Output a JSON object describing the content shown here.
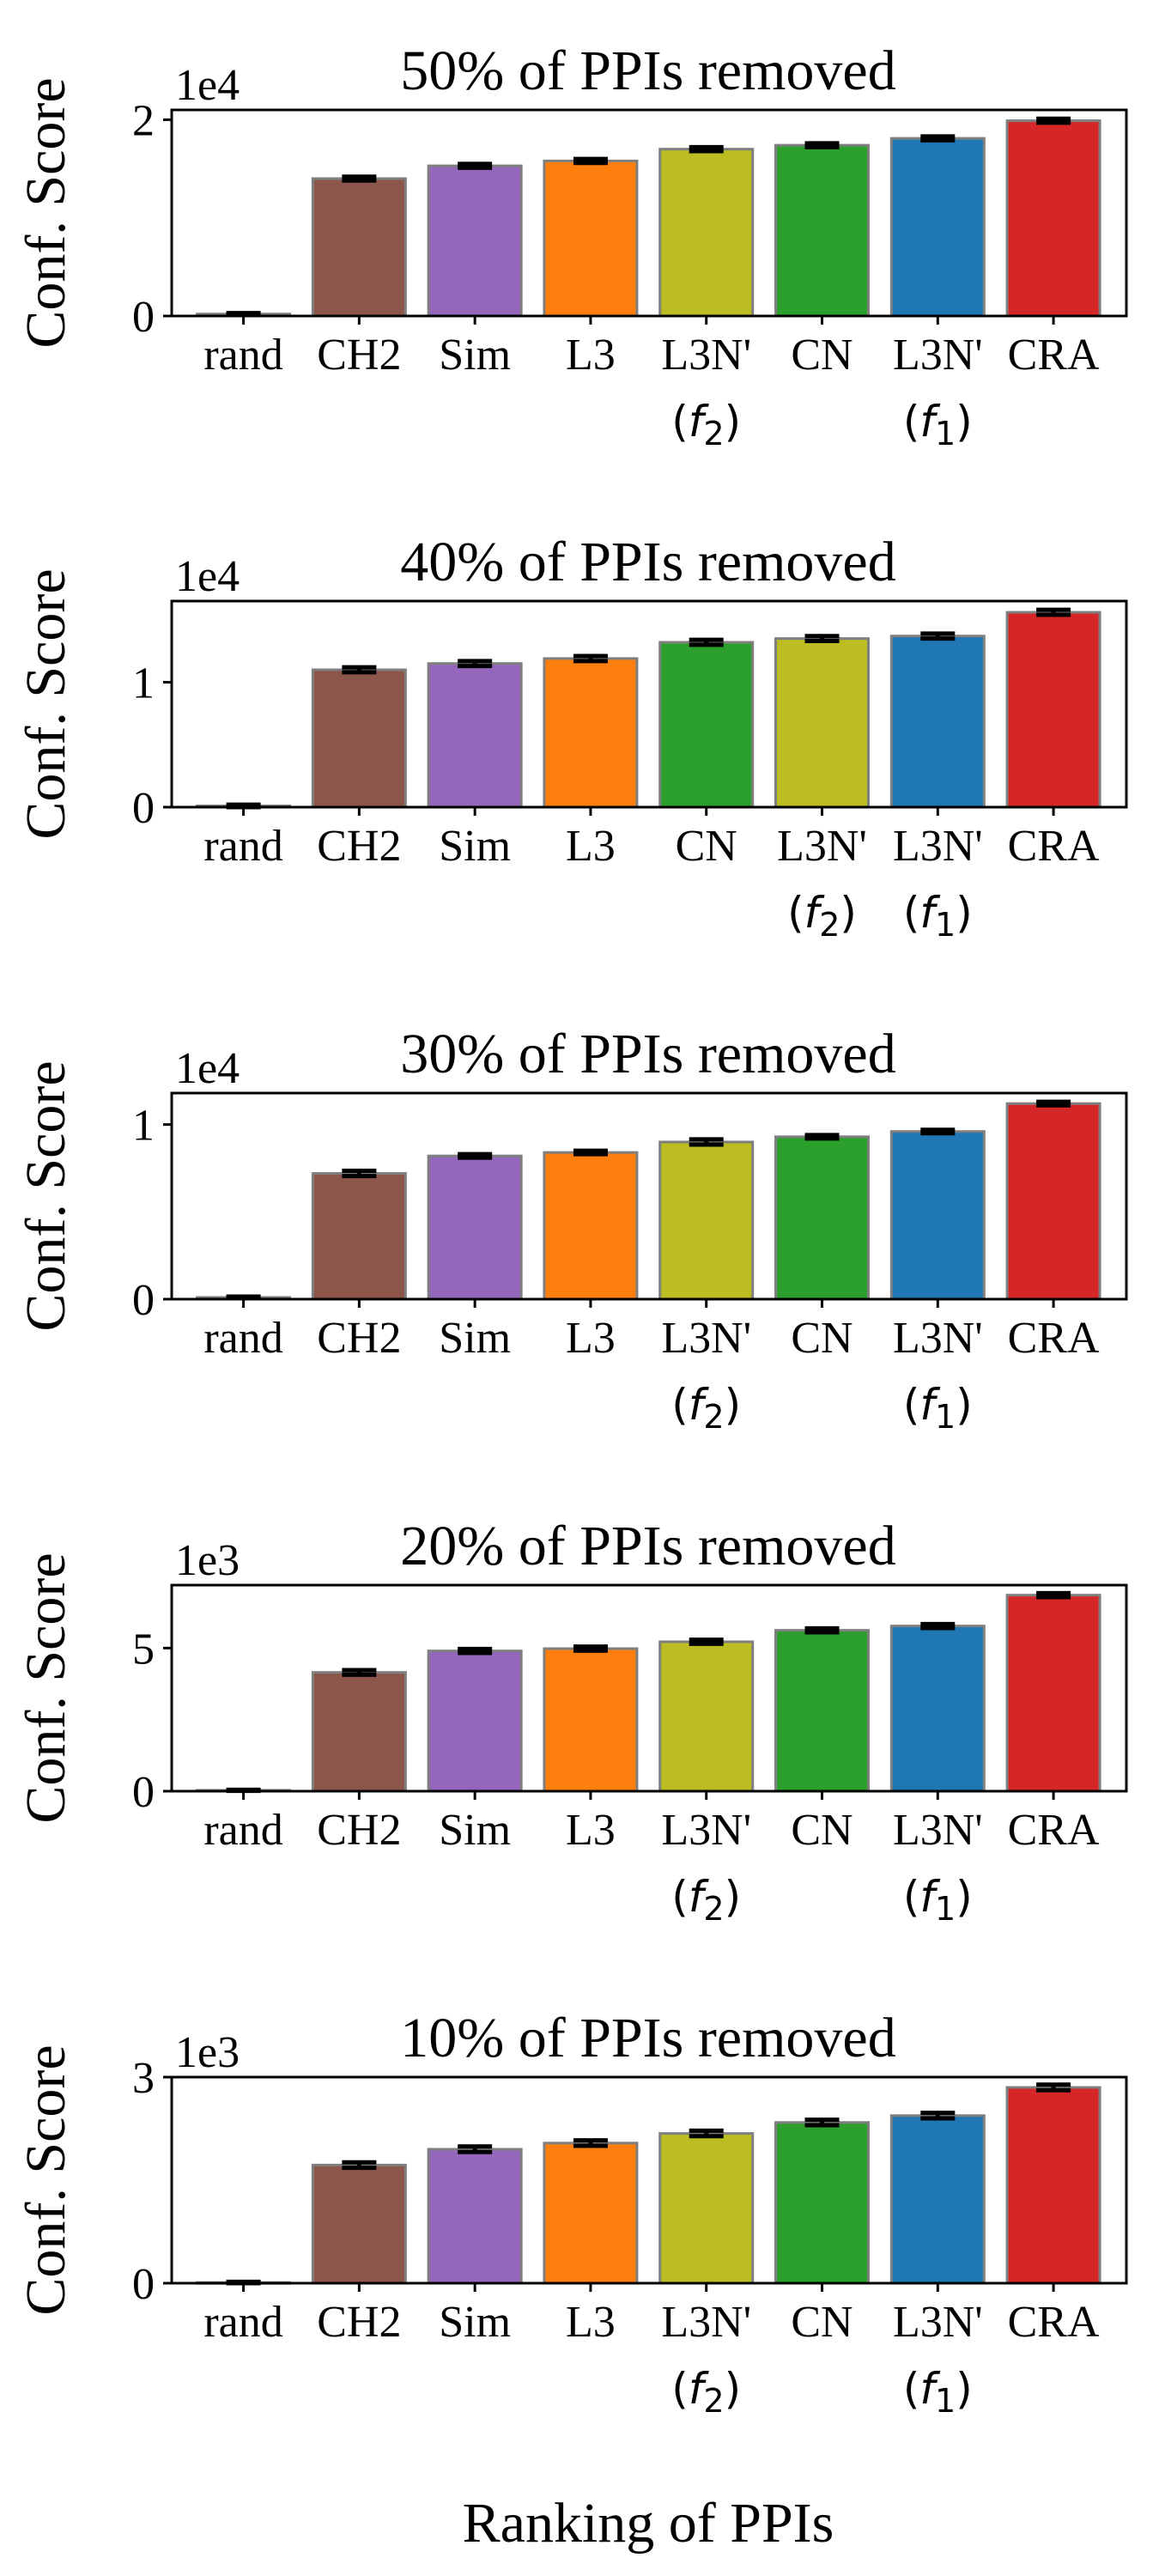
{
  "figure": {
    "xlabel": "Ranking of PPIs",
    "ylabel": "Conf. Score"
  },
  "colors": {
    "rand": "#7f7f7f",
    "CH2": "#8c564b",
    "Sim": "#9467bd",
    "L3": "#ff7f0e",
    "f2": "#bcbd22",
    "CN": "#2ca02c",
    "f1": "#1f77b4",
    "CRA": "#d62728"
  },
  "chart_data": [
    {
      "type": "bar",
      "title": "50% of PPIs removed",
      "multiplier": "1e4",
      "ylim": [
        0,
        2.1
      ],
      "yticks": [
        {
          "v": 0,
          "label": "0"
        },
        {
          "v": 2,
          "label": "2"
        }
      ],
      "categories": [
        {
          "line1": "rand",
          "sub": "",
          "color": "rand"
        },
        {
          "line1": "CH2",
          "sub": "",
          "color": "CH2"
        },
        {
          "line1": "Sim",
          "sub": "",
          "color": "Sim"
        },
        {
          "line1": "L3",
          "sub": "",
          "color": "L3"
        },
        {
          "line1": "L3N'",
          "sub": "2",
          "color": "f2"
        },
        {
          "line1": "CN",
          "sub": "",
          "color": "CN"
        },
        {
          "line1": "L3N'",
          "sub": "1",
          "color": "f1"
        },
        {
          "line1": "CRA",
          "sub": "",
          "color": "CRA"
        }
      ],
      "values": [
        0.02,
        1.4,
        1.53,
        1.58,
        1.7,
        1.74,
        1.81,
        1.99
      ],
      "errors": [
        0.01,
        0.02,
        0.02,
        0.02,
        0.02,
        0.02,
        0.02,
        0.02
      ]
    },
    {
      "type": "bar",
      "title": "40% of PPIs removed",
      "multiplier": "1e4",
      "ylim": [
        0,
        1.65
      ],
      "yticks": [
        {
          "v": 0,
          "label": "0"
        },
        {
          "v": 1,
          "label": "1"
        }
      ],
      "categories": [
        {
          "line1": "rand",
          "sub": "",
          "color": "rand"
        },
        {
          "line1": "CH2",
          "sub": "",
          "color": "CH2"
        },
        {
          "line1": "Sim",
          "sub": "",
          "color": "Sim"
        },
        {
          "line1": "L3",
          "sub": "",
          "color": "L3"
        },
        {
          "line1": "CN",
          "sub": "",
          "color": "CN"
        },
        {
          "line1": "L3N'",
          "sub": "2",
          "color": "f2"
        },
        {
          "line1": "L3N'",
          "sub": "1",
          "color": "f1"
        },
        {
          "line1": "CRA",
          "sub": "",
          "color": "CRA"
        }
      ],
      "values": [
        0.01,
        1.1,
        1.15,
        1.19,
        1.32,
        1.35,
        1.37,
        1.56
      ],
      "errors": [
        0.01,
        0.02,
        0.02,
        0.02,
        0.02,
        0.02,
        0.02,
        0.02
      ]
    },
    {
      "type": "bar",
      "title": "30% of PPIs removed",
      "multiplier": "1e4",
      "ylim": [
        0,
        1.18
      ],
      "yticks": [
        {
          "v": 0,
          "label": "0"
        },
        {
          "v": 1,
          "label": "1"
        }
      ],
      "categories": [
        {
          "line1": "rand",
          "sub": "",
          "color": "rand"
        },
        {
          "line1": "CH2",
          "sub": "",
          "color": "CH2"
        },
        {
          "line1": "Sim",
          "sub": "",
          "color": "Sim"
        },
        {
          "line1": "L3",
          "sub": "",
          "color": "L3"
        },
        {
          "line1": "L3N'",
          "sub": "2",
          "color": "f2"
        },
        {
          "line1": "CN",
          "sub": "",
          "color": "CN"
        },
        {
          "line1": "L3N'",
          "sub": "1",
          "color": "f1"
        },
        {
          "line1": "CRA",
          "sub": "",
          "color": "CRA"
        }
      ],
      "values": [
        0.01,
        0.72,
        0.82,
        0.84,
        0.9,
        0.93,
        0.96,
        1.12
      ],
      "errors": [
        0.005,
        0.015,
        0.01,
        0.01,
        0.015,
        0.01,
        0.01,
        0.01
      ]
    },
    {
      "type": "bar",
      "title": "20% of PPIs removed",
      "multiplier": "1e3",
      "ylim": [
        0,
        7.2
      ],
      "yticks": [
        {
          "v": 0,
          "label": "0"
        },
        {
          "v": 5,
          "label": "5"
        }
      ],
      "categories": [
        {
          "line1": "rand",
          "sub": "",
          "color": "rand"
        },
        {
          "line1": "CH2",
          "sub": "",
          "color": "CH2"
        },
        {
          "line1": "Sim",
          "sub": "",
          "color": "Sim"
        },
        {
          "line1": "L3",
          "sub": "",
          "color": "L3"
        },
        {
          "line1": "L3N'",
          "sub": "2",
          "color": "f2"
        },
        {
          "line1": "CN",
          "sub": "",
          "color": "CN"
        },
        {
          "line1": "L3N'",
          "sub": "1",
          "color": "f1"
        },
        {
          "line1": "CRA",
          "sub": "",
          "color": "CRA"
        }
      ],
      "values": [
        0.03,
        4.15,
        4.9,
        4.98,
        5.22,
        5.62,
        5.77,
        6.85
      ],
      "errors": [
        0.02,
        0.08,
        0.07,
        0.07,
        0.07,
        0.07,
        0.07,
        0.07
      ]
    },
    {
      "type": "bar",
      "title": "10% of PPIs removed",
      "multiplier": "1e3",
      "ylim": [
        0,
        3.0
      ],
      "yticks": [
        {
          "v": 0,
          "label": "0"
        },
        {
          "v": 3,
          "label": "3"
        }
      ],
      "categories": [
        {
          "line1": "rand",
          "sub": "",
          "color": "rand"
        },
        {
          "line1": "CH2",
          "sub": "",
          "color": "CH2"
        },
        {
          "line1": "Sim",
          "sub": "",
          "color": "Sim"
        },
        {
          "line1": "L3",
          "sub": "",
          "color": "L3"
        },
        {
          "line1": "L3N'",
          "sub": "2",
          "color": "f2"
        },
        {
          "line1": "CN",
          "sub": "",
          "color": "CN"
        },
        {
          "line1": "L3N'",
          "sub": "1",
          "color": "f1"
        },
        {
          "line1": "CRA",
          "sub": "",
          "color": "CRA"
        }
      ],
      "values": [
        0.01,
        1.72,
        1.95,
        2.04,
        2.18,
        2.34,
        2.44,
        2.85
      ],
      "errors": [
        0.01,
        0.04,
        0.04,
        0.04,
        0.04,
        0.04,
        0.04,
        0.04
      ]
    }
  ]
}
